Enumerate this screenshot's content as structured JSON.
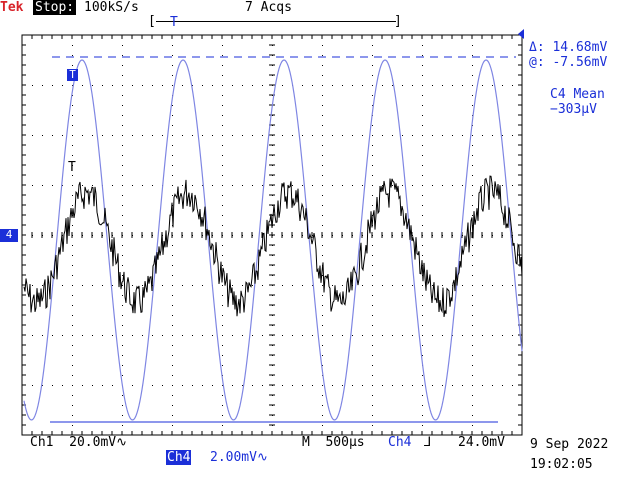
{
  "header": {
    "brand": "Tek",
    "run_state": "Stop:",
    "sample_rate": "100kS/s",
    "acquisitions": "7 Acqs"
  },
  "trigger_bar": {
    "label": "T",
    "left_bracket": "[",
    "right_bracket": "]"
  },
  "cursor_readout": {
    "delta": "Δ: 14.68mV",
    "at": "@: -7.56mV"
  },
  "measurement": {
    "name": "C4 Mean",
    "value": "−303µV"
  },
  "markers": {
    "trigger_marker": "T",
    "ch4_ground": "4",
    "ch1_trigger": "T"
  },
  "footer": {
    "ch1_scale": "Ch1  20.0mV∿",
    "ch4_label": "Ch4",
    "ch4_scale": "2.00mV∿",
    "timebase": "M  500µs",
    "trigger_source": "Ch4",
    "trigger_slope": "⅃",
    "trigger_level": "24.0mV",
    "date": "9 Sep 2022",
    "time": "19:02:05"
  },
  "colors": {
    "ch4": "#1b2fd8",
    "ch4_trace": "#7f86e3",
    "ch1_trace": "#000000",
    "brand": "#d8232a",
    "grid": "#000000"
  },
  "waveforms": {
    "ch4": {
      "cycles": 5,
      "shape": "sine",
      "amplitude_divs": 3.6,
      "offset_divs": 0.1
    },
    "ch1": {
      "cycles": 5,
      "shape": "noisy-sine",
      "amplitude_divs": 1.1,
      "offset_divs": 0.25
    }
  }
}
